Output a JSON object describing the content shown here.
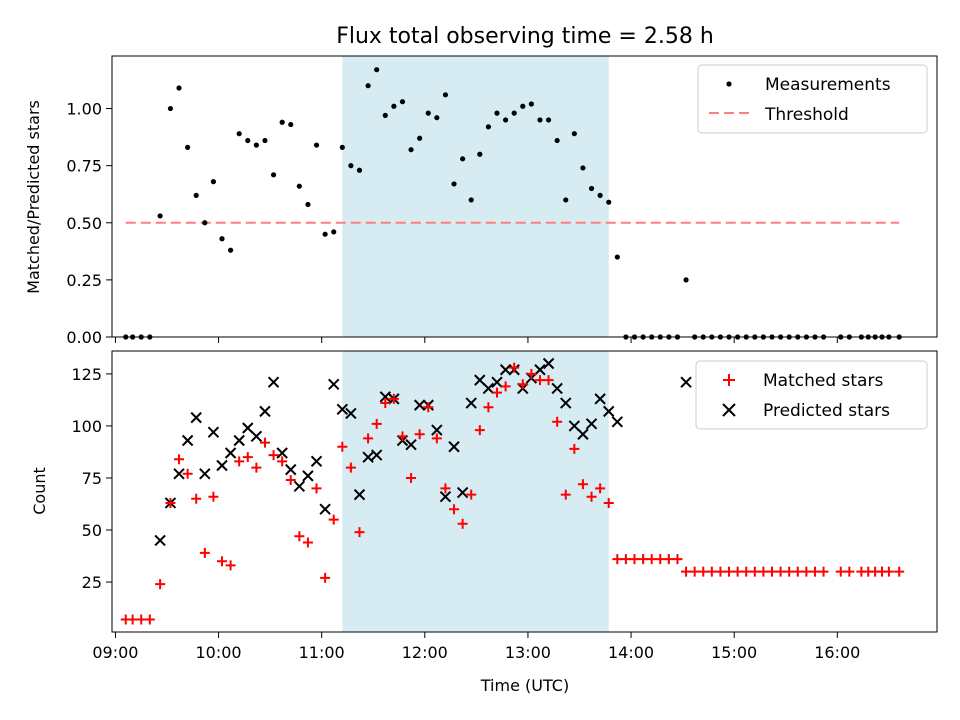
{
  "figure": {
    "title": "Flux total observing time = 2.58 h",
    "highlight_window": {
      "start": "11:12",
      "end": "13:47",
      "color": "#add8e6"
    }
  },
  "chart_data": [
    {
      "type": "scatter",
      "ylabel": "Matched/Predicted stars",
      "ylim": [
        0,
        1.23
      ],
      "yticks": [
        "0.00",
        "0.25",
        "0.50",
        "0.75",
        "1.00"
      ],
      "xlim": [
        "08:58",
        "16:58"
      ],
      "legend_position": "upper right",
      "threshold": {
        "name": "Threshold",
        "value": 0.5,
        "x_start": "09:06",
        "x_end": "16:36",
        "color": "#ff7f7f"
      },
      "series": [
        {
          "name": "Measurements",
          "color": "#000000",
          "points": [
            [
              "09:06",
              0
            ],
            [
              "09:10",
              0
            ],
            [
              "09:15",
              0
            ],
            [
              "09:20",
              0
            ],
            [
              "09:26",
              0.53
            ],
            [
              "09:32",
              1.0
            ],
            [
              "09:37",
              1.09
            ],
            [
              "09:42",
              0.83
            ],
            [
              "09:47",
              0.62
            ],
            [
              "09:52",
              0.5
            ],
            [
              "09:57",
              0.68
            ],
            [
              "10:02",
              0.43
            ],
            [
              "10:07",
              0.38
            ],
            [
              "10:12",
              0.89
            ],
            [
              "10:17",
              0.86
            ],
            [
              "10:22",
              0.84
            ],
            [
              "10:27",
              0.86
            ],
            [
              "10:32",
              0.71
            ],
            [
              "10:37",
              0.94
            ],
            [
              "10:42",
              0.93
            ],
            [
              "10:47",
              0.66
            ],
            [
              "10:52",
              0.58
            ],
            [
              "10:57",
              0.84
            ],
            [
              "11:02",
              0.45
            ],
            [
              "11:07",
              0.46
            ],
            [
              "11:12",
              0.83
            ],
            [
              "11:17",
              0.75
            ],
            [
              "11:22",
              0.73
            ],
            [
              "11:27",
              1.1
            ],
            [
              "11:32",
              1.17
            ],
            [
              "11:37",
              0.97
            ],
            [
              "11:42",
              1.01
            ],
            [
              "11:47",
              1.03
            ],
            [
              "11:52",
              0.82
            ],
            [
              "11:57",
              0.87
            ],
            [
              "12:02",
              0.98
            ],
            [
              "12:07",
              0.96
            ],
            [
              "12:12",
              1.06
            ],
            [
              "12:17",
              0.67
            ],
            [
              "12:22",
              0.78
            ],
            [
              "12:27",
              0.6
            ],
            [
              "12:32",
              0.8
            ],
            [
              "12:37",
              0.92
            ],
            [
              "12:42",
              0.98
            ],
            [
              "12:47",
              0.95
            ],
            [
              "12:52",
              0.98
            ],
            [
              "12:57",
              1.01
            ],
            [
              "13:02",
              1.02
            ],
            [
              "13:07",
              0.95
            ],
            [
              "13:12",
              0.95
            ],
            [
              "13:17",
              0.86
            ],
            [
              "13:22",
              0.6
            ],
            [
              "13:27",
              0.89
            ],
            [
              "13:32",
              0.74
            ],
            [
              "13:37",
              0.65
            ],
            [
              "13:42",
              0.62
            ],
            [
              "13:47",
              0.59
            ],
            [
              "13:52",
              0.35
            ],
            [
              "13:57",
              0
            ],
            [
              "14:02",
              0
            ],
            [
              "14:07",
              0
            ],
            [
              "14:12",
              0
            ],
            [
              "14:17",
              0
            ],
            [
              "14:22",
              0
            ],
            [
              "14:27",
              0
            ],
            [
              "14:32",
              0.25
            ],
            [
              "14:37",
              0
            ],
            [
              "14:42",
              0
            ],
            [
              "14:47",
              0
            ],
            [
              "14:52",
              0
            ],
            [
              "14:57",
              0
            ],
            [
              "15:02",
              0
            ],
            [
              "15:07",
              0
            ],
            [
              "15:12",
              0
            ],
            [
              "15:17",
              0
            ],
            [
              "15:22",
              0
            ],
            [
              "15:27",
              0
            ],
            [
              "15:32",
              0
            ],
            [
              "15:37",
              0
            ],
            [
              "15:42",
              0
            ],
            [
              "15:47",
              0
            ],
            [
              "15:52",
              0
            ],
            [
              "16:02",
              0
            ],
            [
              "16:07",
              0
            ],
            [
              "16:14",
              0
            ],
            [
              "16:18",
              0
            ],
            [
              "16:22",
              0
            ],
            [
              "16:26",
              0
            ],
            [
              "16:30",
              0
            ],
            [
              "16:36",
              0
            ]
          ]
        }
      ]
    },
    {
      "type": "scatter",
      "xlabel": "Time (UTC)",
      "ylabel": "Count",
      "ylim": [
        1,
        136
      ],
      "yticks": [
        "25",
        "50",
        "75",
        "100",
        "125"
      ],
      "xlim": [
        "08:58",
        "16:58"
      ],
      "xticks": [
        "09:00",
        "10:00",
        "11:00",
        "12:00",
        "13:00",
        "14:00",
        "15:00",
        "16:00"
      ],
      "legend_position": "upper right",
      "series": [
        {
          "name": "Matched stars",
          "marker": "+",
          "color": "#ff0000",
          "points": [
            [
              "09:06",
              7
            ],
            [
              "09:10",
              7
            ],
            [
              "09:15",
              7
            ],
            [
              "09:20",
              7
            ],
            [
              "09:26",
              24
            ],
            [
              "09:32",
              63
            ],
            [
              "09:37",
              84
            ],
            [
              "09:42",
              77
            ],
            [
              "09:47",
              65
            ],
            [
              "09:52",
              39
            ],
            [
              "09:57",
              66
            ],
            [
              "10:02",
              35
            ],
            [
              "10:07",
              33
            ],
            [
              "10:12",
              83
            ],
            [
              "10:17",
              85
            ],
            [
              "10:22",
              80
            ],
            [
              "10:27",
              92
            ],
            [
              "10:32",
              86
            ],
            [
              "10:37",
              83
            ],
            [
              "10:42",
              74
            ],
            [
              "10:47",
              47
            ],
            [
              "10:52",
              44
            ],
            [
              "10:57",
              70
            ],
            [
              "11:02",
              27
            ],
            [
              "11:07",
              55
            ],
            [
              "11:12",
              90
            ],
            [
              "11:17",
              80
            ],
            [
              "11:22",
              49
            ],
            [
              "11:27",
              94
            ],
            [
              "11:32",
              101
            ],
            [
              "11:37",
              111
            ],
            [
              "11:42",
              113
            ],
            [
              "11:47",
              95
            ],
            [
              "11:52",
              75
            ],
            [
              "11:57",
              96
            ],
            [
              "12:02",
              109
            ],
            [
              "12:07",
              94
            ],
            [
              "12:12",
              70
            ],
            [
              "12:17",
              60
            ],
            [
              "12:22",
              53
            ],
            [
              "12:27",
              67
            ],
            [
              "12:32",
              98
            ],
            [
              "12:37",
              109
            ],
            [
              "12:42",
              116
            ],
            [
              "12:47",
              119
            ],
            [
              "12:52",
              128
            ],
            [
              "12:57",
              120
            ],
            [
              "13:02",
              125
            ],
            [
              "13:07",
              122
            ],
            [
              "13:12",
              122
            ],
            [
              "13:17",
              102
            ],
            [
              "13:22",
              67
            ],
            [
              "13:27",
              89
            ],
            [
              "13:32",
              72
            ],
            [
              "13:37",
              66
            ],
            [
              "13:42",
              70
            ],
            [
              "13:47",
              63
            ],
            [
              "13:52",
              36
            ],
            [
              "13:57",
              36
            ],
            [
              "14:02",
              36
            ],
            [
              "14:07",
              36
            ],
            [
              "14:12",
              36
            ],
            [
              "14:17",
              36
            ],
            [
              "14:22",
              36
            ],
            [
              "14:27",
              36
            ],
            [
              "14:32",
              30
            ],
            [
              "14:37",
              30
            ],
            [
              "14:42",
              30
            ],
            [
              "14:47",
              30
            ],
            [
              "14:52",
              30
            ],
            [
              "14:57",
              30
            ],
            [
              "15:02",
              30
            ],
            [
              "15:07",
              30
            ],
            [
              "15:12",
              30
            ],
            [
              "15:17",
              30
            ],
            [
              "15:22",
              30
            ],
            [
              "15:27",
              30
            ],
            [
              "15:32",
              30
            ],
            [
              "15:37",
              30
            ],
            [
              "15:42",
              30
            ],
            [
              "15:47",
              30
            ],
            [
              "15:52",
              30
            ],
            [
              "16:02",
              30
            ],
            [
              "16:07",
              30
            ],
            [
              "16:14",
              30
            ],
            [
              "16:18",
              30
            ],
            [
              "16:22",
              30
            ],
            [
              "16:26",
              30
            ],
            [
              "16:30",
              30
            ],
            [
              "16:36",
              30
            ]
          ]
        },
        {
          "name": "Predicted stars",
          "marker": "x",
          "color": "#000000",
          "points": [
            [
              "09:26",
              45
            ],
            [
              "09:32",
              63
            ],
            [
              "09:37",
              77
            ],
            [
              "09:42",
              93
            ],
            [
              "09:47",
              104
            ],
            [
              "09:52",
              77
            ],
            [
              "09:57",
              97
            ],
            [
              "10:02",
              81
            ],
            [
              "10:07",
              87
            ],
            [
              "10:12",
              93
            ],
            [
              "10:17",
              99
            ],
            [
              "10:22",
              95
            ],
            [
              "10:27",
              107
            ],
            [
              "10:32",
              121
            ],
            [
              "10:37",
              87
            ],
            [
              "10:42",
              79
            ],
            [
              "10:47",
              71
            ],
            [
              "10:52",
              76
            ],
            [
              "10:57",
              83
            ],
            [
              "11:02",
              60
            ],
            [
              "11:07",
              120
            ],
            [
              "11:12",
              108
            ],
            [
              "11:17",
              106
            ],
            [
              "11:22",
              67
            ],
            [
              "11:27",
              85
            ],
            [
              "11:32",
              86
            ],
            [
              "11:37",
              114
            ],
            [
              "11:42",
              113
            ],
            [
              "11:47",
              93
            ],
            [
              "11:52",
              91
            ],
            [
              "11:57",
              110
            ],
            [
              "12:02",
              110
            ],
            [
              "12:07",
              98
            ],
            [
              "12:12",
              66
            ],
            [
              "12:17",
              90
            ],
            [
              "12:22",
              68
            ],
            [
              "12:27",
              111
            ],
            [
              "12:32",
              122
            ],
            [
              "12:37",
              118
            ],
            [
              "12:42",
              121
            ],
            [
              "12:47",
              127
            ],
            [
              "12:52",
              127
            ],
            [
              "12:57",
              118
            ],
            [
              "13:02",
              123
            ],
            [
              "13:07",
              127
            ],
            [
              "13:12",
              130
            ],
            [
              "13:17",
              118
            ],
            [
              "13:22",
              111
            ],
            [
              "13:27",
              100
            ],
            [
              "13:32",
              96
            ],
            [
              "13:37",
              101
            ],
            [
              "13:42",
              113
            ],
            [
              "13:47",
              107
            ],
            [
              "13:52",
              102
            ],
            [
              "14:32",
              121
            ]
          ]
        }
      ]
    }
  ]
}
